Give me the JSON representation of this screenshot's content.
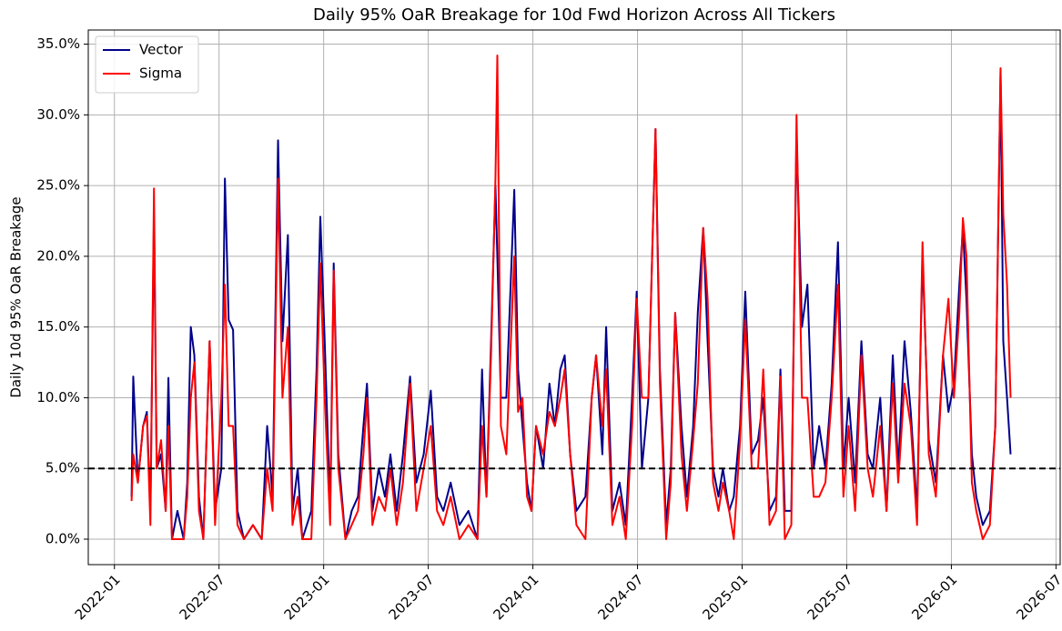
{
  "chart_data": {
    "type": "line",
    "title": "Daily 95% OaR Breakage for 10d Fwd Horizon Across All Tickers",
    "y_label": "Daily 10d 95% OaR Breakage",
    "x": [
      2022.082,
      2022.09,
      2022.112,
      2022.137,
      2022.155,
      2022.172,
      2022.189,
      2022.202,
      2022.223,
      2022.245,
      2022.258,
      2022.275,
      2022.301,
      2022.331,
      2022.348,
      2022.365,
      2022.382,
      2022.404,
      2022.425,
      2022.455,
      2022.481,
      2022.511,
      2022.528,
      2022.546,
      2022.567,
      2022.588,
      2022.619,
      2022.662,
      2022.704,
      2022.73,
      2022.756,
      2022.782,
      2022.803,
      2022.829,
      2022.851,
      2022.876,
      2022.898,
      2022.941,
      2022.966,
      2022.984,
      2023.005,
      2023.031,
      2023.048,
      2023.07,
      2023.104,
      2023.134,
      2023.164,
      2023.19,
      2023.207,
      2023.233,
      2023.263,
      2023.293,
      2023.319,
      2023.349,
      2023.379,
      2023.413,
      2023.443,
      2023.478,
      2023.512,
      2023.542,
      2023.572,
      2023.607,
      2023.649,
      2023.692,
      2023.735,
      2023.757,
      2023.778,
      2023.8,
      2023.821,
      2023.83,
      2023.847,
      2023.873,
      2023.911,
      2023.929,
      2023.95,
      2023.972,
      2023.993,
      2024.015,
      2024.049,
      2024.079,
      2024.105,
      2024.131,
      2024.152,
      2024.178,
      2024.208,
      2024.251,
      2024.281,
      2024.302,
      2024.332,
      2024.35,
      2024.38,
      2024.414,
      2024.444,
      2024.474,
      2024.496,
      2024.521,
      2024.552,
      2024.586,
      2024.607,
      2024.637,
      2024.659,
      2024.68,
      2024.71,
      2024.736,
      2024.766,
      2024.788,
      2024.814,
      2024.835,
      2024.861,
      2024.887,
      2024.908,
      2024.938,
      2024.96,
      2024.99,
      2025.015,
      2025.046,
      2025.076,
      2025.101,
      2025.131,
      2025.162,
      2025.183,
      2025.204,
      2025.235,
      2025.26,
      2025.286,
      2025.312,
      2025.342,
      2025.368,
      2025.398,
      2025.428,
      2025.458,
      2025.484,
      2025.509,
      2025.54,
      2025.57,
      2025.6,
      2025.625,
      2025.66,
      2025.69,
      2025.72,
      2025.746,
      2025.776,
      2025.806,
      2025.836,
      2025.862,
      2025.892,
      2025.926,
      2025.96,
      2025.986,
      2026.012,
      2026.038,
      2026.055,
      2026.072,
      2026.098,
      2026.119,
      2026.15,
      2026.184,
      2026.21,
      2026.235,
      2026.248,
      2026.266,
      2026.283
    ],
    "series": [
      {
        "name": "Vector",
        "color": "#00008b",
        "values": [
          3,
          11.5,
          4,
          8,
          9,
          2,
          23,
          5,
          6,
          2,
          11.4,
          0,
          2,
          0,
          4,
          15,
          13,
          3,
          0,
          14,
          2,
          5,
          25.5,
          15.5,
          14.8,
          2,
          0,
          1,
          0,
          8,
          3,
          28.2,
          14,
          21.5,
          2,
          5,
          0,
          2,
          12,
          22.8,
          14,
          2,
          19.5,
          6,
          0,
          2,
          3,
          8,
          11,
          2,
          5,
          3,
          6,
          2,
          6,
          11.5,
          4,
          6,
          10.5,
          3,
          2,
          4,
          1,
          2,
          0,
          12,
          3,
          14,
          25,
          20,
          10,
          10,
          24.7,
          12,
          8,
          4,
          2,
          8,
          5,
          11,
          8,
          12,
          13,
          6,
          2,
          3,
          10,
          13,
          6,
          15,
          2,
          4,
          1,
          10,
          17.5,
          5,
          10,
          29,
          12,
          1,
          5,
          16,
          8,
          3,
          8,
          16,
          22,
          14,
          5,
          3,
          5,
          2,
          3,
          8,
          17.5,
          6,
          7,
          10,
          2,
          3,
          12,
          2,
          2,
          28.6,
          15,
          18,
          5,
          8,
          5,
          11,
          21,
          5,
          10,
          4,
          14,
          6,
          5,
          10,
          2,
          13,
          5,
          14,
          9,
          2,
          20,
          7,
          4,
          13,
          9,
          11,
          18,
          22,
          17,
          6,
          3,
          1,
          2,
          8,
          33,
          14,
          10,
          6
        ]
      },
      {
        "name": "Sigma",
        "color": "#ff0000",
        "values": [
          2.7,
          6,
          4,
          8,
          8.7,
          1,
          24.8,
          5,
          7,
          2,
          8,
          0,
          0,
          0,
          3,
          10,
          12.5,
          2,
          0,
          14,
          1,
          10,
          18,
          8,
          8,
          1,
          0,
          1,
          0,
          5,
          2,
          25.5,
          10,
          15,
          1,
          3,
          0,
          0,
          10,
          19.5,
          10,
          1,
          19,
          5,
          0,
          1,
          2,
          6,
          10,
          1,
          3,
          2,
          5,
          1,
          4,
          11,
          2,
          5,
          8,
          2,
          1,
          3,
          0,
          1,
          0,
          8,
          3,
          13,
          25.5,
          34.2,
          8,
          6,
          20,
          9,
          10,
          3,
          2,
          8,
          6,
          9,
          8,
          10,
          12,
          6,
          1,
          0,
          10,
          13,
          8,
          12,
          1,
          3,
          0,
          8,
          17,
          10,
          10,
          29,
          11,
          0,
          4,
          16,
          6,
          2,
          7,
          11,
          22,
          17,
          4,
          2,
          4,
          2,
          0,
          7,
          15.5,
          5,
          5,
          12,
          1,
          2,
          11.5,
          0,
          1,
          30,
          10,
          10,
          3,
          3,
          4,
          10,
          18,
          3,
          8,
          2,
          13,
          5,
          3,
          8,
          2,
          11,
          4,
          11,
          8,
          1,
          21,
          6,
          3,
          13,
          17,
          10,
          16,
          22.7,
          20,
          4,
          2,
          0,
          1,
          8,
          33.3,
          23,
          18,
          10
        ]
      }
    ],
    "xlim": [
      2021.875,
      2026.52
    ],
    "xticks": [
      {
        "value": 2022.0,
        "label": "2022-01"
      },
      {
        "value": 2022.5,
        "label": "2022-07"
      },
      {
        "value": 2023.0,
        "label": "2023-01"
      },
      {
        "value": 2023.5,
        "label": "2023-07"
      },
      {
        "value": 2024.0,
        "label": "2024-01"
      },
      {
        "value": 2024.5,
        "label": "2024-07"
      },
      {
        "value": 2025.0,
        "label": "2025-01"
      },
      {
        "value": 2025.5,
        "label": "2025-07"
      },
      {
        "value": 2026.0,
        "label": "2026-01"
      },
      {
        "value": 2026.5,
        "label": "2026-07"
      }
    ],
    "ylim": [
      -1.8,
      36
    ],
    "yticks": [
      {
        "value": 0,
        "label": "0.0%"
      },
      {
        "value": 5,
        "label": "5.0%"
      },
      {
        "value": 10,
        "label": "10.0%"
      },
      {
        "value": 15,
        "label": "15.0%"
      },
      {
        "value": 20,
        "label": "20.0%"
      },
      {
        "value": 25,
        "label": "25.0%"
      },
      {
        "value": 30,
        "label": "30.0%"
      },
      {
        "value": 35,
        "label": "35.0%"
      }
    ],
    "hline": 5,
    "grid": true,
    "legend": "upper left"
  }
}
